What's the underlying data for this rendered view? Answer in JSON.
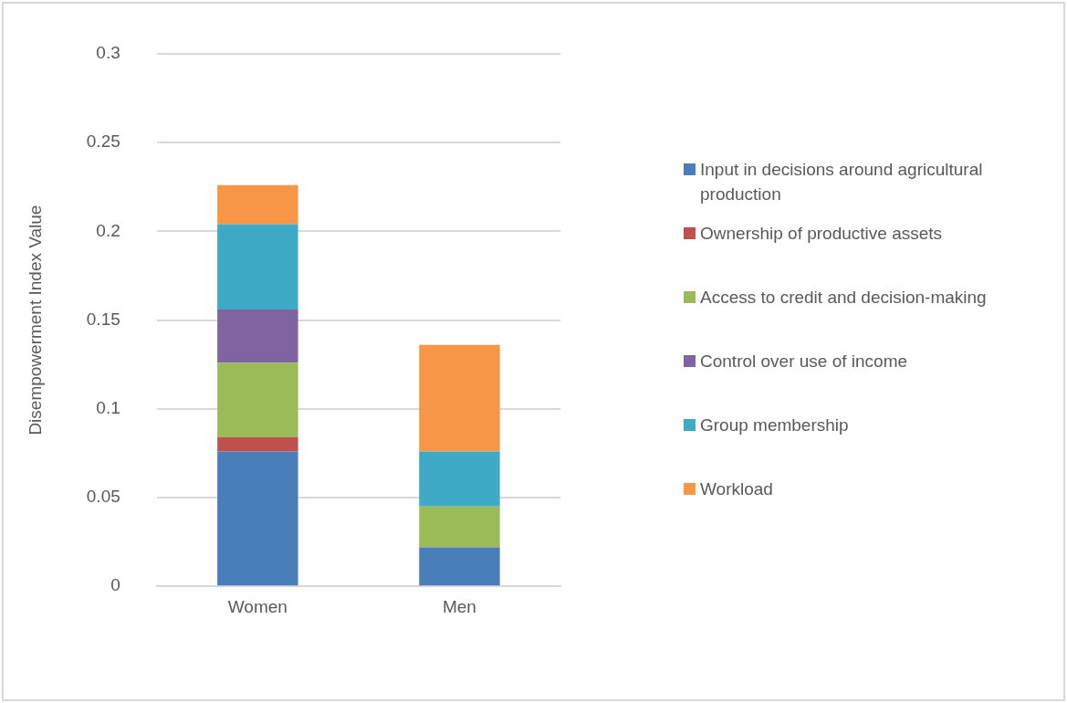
{
  "chart_data": {
    "type": "bar",
    "stacked": true,
    "ylabel": "Disempowerment Index Value",
    "categories": [
      "Women",
      "Men"
    ],
    "series": [
      {
        "name": "Input in decisions around agricultural production",
        "color": "#4a7ebb",
        "values": [
          0.076,
          0.022
        ]
      },
      {
        "name": "Ownership of productive assets",
        "color": "#c0504d",
        "values": [
          0.008,
          0
        ]
      },
      {
        "name": "Access to credit and decision-making",
        "color": "#9bbb59",
        "values": [
          0.042,
          0.023
        ]
      },
      {
        "name": "Control over use of income",
        "color": "#8064a2",
        "values": [
          0.03,
          0
        ]
      },
      {
        "name": "Group membership",
        "color": "#3faac6",
        "values": [
          0.048,
          0.031
        ]
      },
      {
        "name": "Workload",
        "color": "#f79646",
        "values": [
          0.022,
          0.06
        ]
      }
    ],
    "ylim": [
      0,
      0.3
    ],
    "yticks": [
      0,
      0.05,
      0.1,
      0.15,
      0.2,
      0.25,
      0.3
    ],
    "grid": "y",
    "legend": "right"
  }
}
